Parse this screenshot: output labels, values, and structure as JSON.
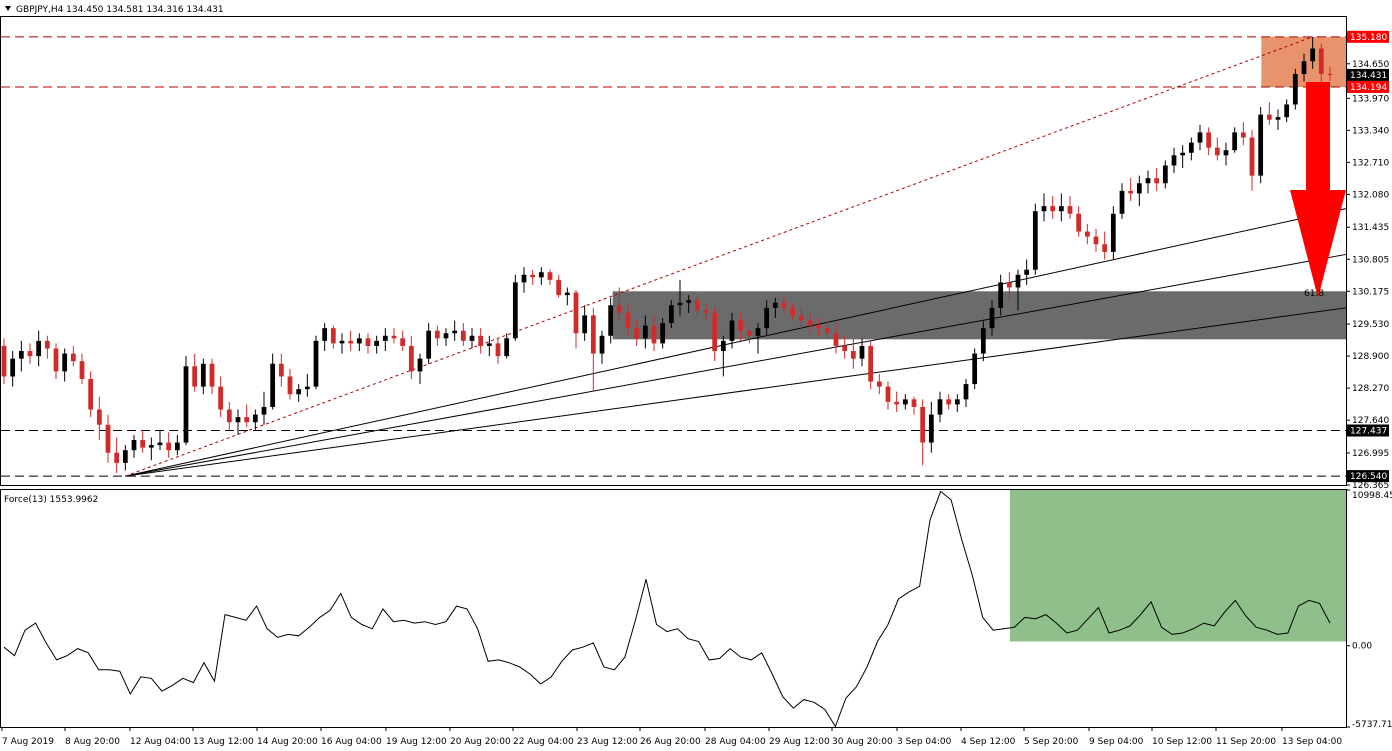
{
  "main_panel": {
    "title": "GBPJPY,H4  134.450 134.581 134.316 134.431",
    "fib_label": "61.8"
  },
  "force_panel": {
    "title": "Force(13) 1553.9962",
    "axis_labels": [
      "10998.450",
      "0.00",
      "-5737.718"
    ]
  },
  "price_axis": {
    "ticks": [
      "134.650",
      "133.970",
      "133.340",
      "132.710",
      "132.080",
      "131.435",
      "130.805",
      "130.175",
      "129.530",
      "128.900",
      "128.270",
      "127.640",
      "126.995",
      "126.365"
    ]
  },
  "price_tags": [
    {
      "label": "135.180",
      "value": 135.18,
      "bg": "#ff0000",
      "fg": "#ffffff"
    },
    {
      "label": "134.431",
      "value": 134.431,
      "bg": "#000000",
      "fg": "#ffffff"
    },
    {
      "label": "134.194",
      "value": 134.194,
      "bg": "#ff0000",
      "fg": "#ffffff"
    },
    {
      "label": "127.437",
      "value": 127.437,
      "bg": "#000000",
      "fg": "#ffffff"
    },
    {
      "label": "126.540",
      "value": 126.54,
      "bg": "#000000",
      "fg": "#ffffff"
    }
  ],
  "colors": {
    "bull": "#000000",
    "bear": "#d02a2a",
    "resistance_zone": "#e8936c",
    "support_zone": "#6b6b6b",
    "force_zone": "#8fbf8b",
    "arrow": "#ff0000",
    "dashed_red": "#b00000"
  },
  "chart_data": [
    {
      "type": "candlestick",
      "symbol": "GBPJPY",
      "timeframe": "H4",
      "ohlc_last": {
        "open": 134.45,
        "high": 134.581,
        "low": 134.316,
        "close": 134.431
      },
      "ylim": [
        126.365,
        135.57
      ],
      "x_tick_labels": [
        "7 Aug 2019",
        "8 Aug 20:00",
        "12 Aug 04:00",
        "13 Aug 12:00",
        "14 Aug 20:00",
        "16 Aug 04:00",
        "19 Aug 12:00",
        "20 Aug 20:00",
        "22 Aug 04:00",
        "23 Aug 12:00",
        "26 Aug 20:00",
        "28 Aug 04:00",
        "29 Aug 12:00",
        "30 Aug 20:00",
        "3 Sep 04:00",
        "4 Sep 12:00",
        "5 Sep 20:00",
        "9 Sep 04:00",
        "10 Sep 12:00",
        "11 Sep 20:00",
        "13 Sep 04:00"
      ],
      "horizontal_levels": [
        135.18,
        134.194,
        127.437,
        126.54
      ],
      "resistance_zone": [
        134.194,
        135.18
      ],
      "support_zone": [
        129.23,
        130.175
      ],
      "candles": [
        [
          129.1,
          129.25,
          128.35,
          128.5
        ],
        [
          128.5,
          129.0,
          128.3,
          128.85
        ],
        [
          128.85,
          129.2,
          128.6,
          129.0
        ],
        [
          129.0,
          129.15,
          128.75,
          128.9
        ],
        [
          128.9,
          129.4,
          128.7,
          129.2
        ],
        [
          129.2,
          129.3,
          128.85,
          129.05
        ],
        [
          129.05,
          129.15,
          128.45,
          128.6
        ],
        [
          128.6,
          129.05,
          128.4,
          128.95
        ],
        [
          128.95,
          129.1,
          128.7,
          128.8
        ],
        [
          128.8,
          128.95,
          128.35,
          128.45
        ],
        [
          128.45,
          128.6,
          127.7,
          127.85
        ],
        [
          127.85,
          128.1,
          127.25,
          127.55
        ],
        [
          127.55,
          127.75,
          126.8,
          127.0
        ],
        [
          127.0,
          127.3,
          126.6,
          126.8
        ],
        [
          126.8,
          127.15,
          126.65,
          127.05
        ],
        [
          127.05,
          127.35,
          126.9,
          127.25
        ],
        [
          127.25,
          127.45,
          127.0,
          127.1
        ],
        [
          127.1,
          127.3,
          126.85,
          127.15
        ],
        [
          127.15,
          127.45,
          127.05,
          127.2
        ],
        [
          127.2,
          127.4,
          126.9,
          127.05
        ],
        [
          127.05,
          127.35,
          126.95,
          127.2
        ],
        [
          127.2,
          128.9,
          127.15,
          128.7
        ],
        [
          128.7,
          128.95,
          128.2,
          128.3
        ],
        [
          128.3,
          128.85,
          128.15,
          128.75
        ],
        [
          128.75,
          128.85,
          128.15,
          128.3
        ],
        [
          128.3,
          128.5,
          127.7,
          127.85
        ],
        [
          127.85,
          128.0,
          127.45,
          127.6
        ],
        [
          127.6,
          127.85,
          127.35,
          127.7
        ],
        [
          127.7,
          127.95,
          127.5,
          127.6
        ],
        [
          127.6,
          127.85,
          127.45,
          127.75
        ],
        [
          127.75,
          128.2,
          127.55,
          127.9
        ],
        [
          127.9,
          128.95,
          127.85,
          128.75
        ],
        [
          128.75,
          128.95,
          128.3,
          128.5
        ],
        [
          128.5,
          128.65,
          128.05,
          128.15
        ],
        [
          128.15,
          128.35,
          128.0,
          128.25
        ],
        [
          128.25,
          128.55,
          128.1,
          128.3
        ],
        [
          128.3,
          129.3,
          128.25,
          129.2
        ],
        [
          129.2,
          129.55,
          129.0,
          129.45
        ],
        [
          129.45,
          129.5,
          129.05,
          129.15
        ],
        [
          129.15,
          129.35,
          128.95,
          129.2
        ],
        [
          129.2,
          129.4,
          129.0,
          129.15
        ],
        [
          129.15,
          129.35,
          129.0,
          129.25
        ],
        [
          129.25,
          129.35,
          128.95,
          129.1
        ],
        [
          129.1,
          129.3,
          128.95,
          129.2
        ],
        [
          129.2,
          129.45,
          129.0,
          129.3
        ],
        [
          129.3,
          129.45,
          129.15,
          129.25
        ],
        [
          129.25,
          129.4,
          129.0,
          129.1
        ],
        [
          129.1,
          129.3,
          128.45,
          128.6
        ],
        [
          128.6,
          128.95,
          128.35,
          128.85
        ],
        [
          128.85,
          129.55,
          128.75,
          129.4
        ],
        [
          129.4,
          129.5,
          129.1,
          129.25
        ],
        [
          129.25,
          129.45,
          129.1,
          129.35
        ],
        [
          129.35,
          129.6,
          129.2,
          129.4
        ],
        [
          129.4,
          129.55,
          129.1,
          129.2
        ],
        [
          129.2,
          129.45,
          129.05,
          129.3
        ],
        [
          129.3,
          129.45,
          128.95,
          129.1
        ],
        [
          129.1,
          129.3,
          128.9,
          129.15
        ],
        [
          129.15,
          129.25,
          128.75,
          128.9
        ],
        [
          128.9,
          129.35,
          128.85,
          129.25
        ],
        [
          129.25,
          130.5,
          129.2,
          130.35
        ],
        [
          130.35,
          130.65,
          130.15,
          130.5
        ],
        [
          130.5,
          130.6,
          130.3,
          130.45
        ],
        [
          130.45,
          130.65,
          130.3,
          130.55
        ],
        [
          130.55,
          130.6,
          130.3,
          130.4
        ],
        [
          130.4,
          130.5,
          130.05,
          130.1
        ],
        [
          130.1,
          130.25,
          129.9,
          130.15
        ],
        [
          130.15,
          130.2,
          129.05,
          129.35
        ],
        [
          129.35,
          129.9,
          129.2,
          129.7
        ],
        [
          129.7,
          129.85,
          128.2,
          128.95
        ],
        [
          128.95,
          129.4,
          128.75,
          129.3
        ],
        [
          129.3,
          130.05,
          129.15,
          129.9
        ],
        [
          129.9,
          130.25,
          129.6,
          129.75
        ],
        [
          129.75,
          129.9,
          129.3,
          129.45
        ],
        [
          129.45,
          129.6,
          129.1,
          129.25
        ],
        [
          129.25,
          129.7,
          129.05,
          129.5
        ],
        [
          129.5,
          129.7,
          129.0,
          129.15
        ],
        [
          129.15,
          129.65,
          129.05,
          129.55
        ],
        [
          129.55,
          130.0,
          129.45,
          129.9
        ],
        [
          129.9,
          130.4,
          129.7,
          129.95
        ],
        [
          129.95,
          130.1,
          129.75,
          130.0
        ],
        [
          130.0,
          130.1,
          129.7,
          129.8
        ],
        [
          129.8,
          129.95,
          129.6,
          129.75
        ],
        [
          129.75,
          129.85,
          128.8,
          129.0
        ],
        [
          129.0,
          129.3,
          128.5,
          129.2
        ],
        [
          129.2,
          129.75,
          129.05,
          129.6
        ],
        [
          129.6,
          129.75,
          129.2,
          129.4
        ],
        [
          129.4,
          129.5,
          129.15,
          129.3
        ],
        [
          129.3,
          129.55,
          128.95,
          129.45
        ],
        [
          129.45,
          130.0,
          129.3,
          129.85
        ],
        [
          129.85,
          130.05,
          129.65,
          129.95
        ],
        [
          129.95,
          130.1,
          129.75,
          129.85
        ],
        [
          129.85,
          129.95,
          129.6,
          129.7
        ],
        [
          129.7,
          129.85,
          129.45,
          129.6
        ],
        [
          129.6,
          129.75,
          129.35,
          129.5
        ],
        [
          129.5,
          129.65,
          129.3,
          129.45
        ],
        [
          129.45,
          129.6,
          129.25,
          129.35
        ],
        [
          129.35,
          129.55,
          128.95,
          129.1
        ],
        [
          129.1,
          129.3,
          128.85,
          129.0
        ],
        [
          129.0,
          129.25,
          128.65,
          128.85
        ],
        [
          128.85,
          129.25,
          128.7,
          129.1
        ],
        [
          129.1,
          129.2,
          128.25,
          128.4
        ],
        [
          128.4,
          128.55,
          128.15,
          128.3
        ],
        [
          128.3,
          128.4,
          127.85,
          128.0
        ],
        [
          128.0,
          128.2,
          127.8,
          127.95
        ],
        [
          127.95,
          128.15,
          127.85,
          128.05
        ],
        [
          128.05,
          128.1,
          127.75,
          127.9
        ],
        [
          127.9,
          128.05,
          126.75,
          127.2
        ],
        [
          127.2,
          128.0,
          127.0,
          127.75
        ],
        [
          127.75,
          128.2,
          127.6,
          128.05
        ],
        [
          128.05,
          128.15,
          127.85,
          127.95
        ],
        [
          127.95,
          128.15,
          127.8,
          128.05
        ],
        [
          128.05,
          128.45,
          127.9,
          128.35
        ],
        [
          128.35,
          129.05,
          128.25,
          128.95
        ],
        [
          128.95,
          129.6,
          128.8,
          129.45
        ],
        [
          129.45,
          130.0,
          129.3,
          129.85
        ],
        [
          129.85,
          130.5,
          129.7,
          130.35
        ],
        [
          130.35,
          130.55,
          130.0,
          130.25
        ],
        [
          130.25,
          130.6,
          129.8,
          130.5
        ],
        [
          130.5,
          130.8,
          130.3,
          130.6
        ],
        [
          130.6,
          131.9,
          130.5,
          131.75
        ],
        [
          131.75,
          132.1,
          131.55,
          131.85
        ],
        [
          131.85,
          132.05,
          131.6,
          131.75
        ],
        [
          131.75,
          132.1,
          131.55,
          131.85
        ],
        [
          131.85,
          132.05,
          131.6,
          131.7
        ],
        [
          131.7,
          131.85,
          131.25,
          131.35
        ],
        [
          131.35,
          131.5,
          131.1,
          131.25
        ],
        [
          131.25,
          131.4,
          130.95,
          131.1
        ],
        [
          131.1,
          131.35,
          130.8,
          130.95
        ],
        [
          130.95,
          131.85,
          130.8,
          131.7
        ],
        [
          131.7,
          132.3,
          131.6,
          132.15
        ],
        [
          132.15,
          132.4,
          131.95,
          132.1
        ],
        [
          132.1,
          132.45,
          131.85,
          132.3
        ],
        [
          132.3,
          132.55,
          132.1,
          132.4
        ],
        [
          132.4,
          132.6,
          132.15,
          132.3
        ],
        [
          132.3,
          132.75,
          132.2,
          132.65
        ],
        [
          132.65,
          133.0,
          132.5,
          132.85
        ],
        [
          132.85,
          133.05,
          132.6,
          132.9
        ],
        [
          132.9,
          133.2,
          132.75,
          133.1
        ],
        [
          133.1,
          133.45,
          132.95,
          133.3
        ],
        [
          133.3,
          133.4,
          132.85,
          133.0
        ],
        [
          133.0,
          133.2,
          132.75,
          132.85
        ],
        [
          132.85,
          133.1,
          132.65,
          132.95
        ],
        [
          132.95,
          133.4,
          132.9,
          133.3
        ],
        [
          133.3,
          133.5,
          133.05,
          133.2
        ],
        [
          133.2,
          133.35,
          132.15,
          132.45
        ],
        [
          132.45,
          133.8,
          132.3,
          133.65
        ],
        [
          133.65,
          133.9,
          133.45,
          133.55
        ],
        [
          133.55,
          133.75,
          133.35,
          133.6
        ],
        [
          133.6,
          133.95,
          133.5,
          133.85
        ],
        [
          133.85,
          134.55,
          133.75,
          134.45
        ],
        [
          134.45,
          134.85,
          134.3,
          134.7
        ],
        [
          134.7,
          135.18,
          134.55,
          134.95
        ],
        [
          134.95,
          135.05,
          134.2,
          134.45
        ],
        [
          134.45,
          134.581,
          134.316,
          134.431
        ]
      ],
      "fan_lines_from": [
        126.54,
        "12 Aug 04:00"
      ]
    },
    {
      "type": "line",
      "name": "Force(13)",
      "last_value": 1553.9962,
      "ylim": [
        -5737.718,
        10998.45
      ],
      "values": [
        -100,
        -700,
        1100,
        1600,
        200,
        -1000,
        -700,
        -200,
        -500,
        -1700,
        -1700,
        -1800,
        -3400,
        -2200,
        -2300,
        -3200,
        -2800,
        -2300,
        -2600,
        -1200,
        -2500,
        2200,
        2000,
        1800,
        2800,
        1200,
        600,
        800,
        700,
        1300,
        2000,
        2500,
        3700,
        2000,
        1500,
        1200,
        2600,
        1700,
        1800,
        1600,
        1700,
        1500,
        1700,
        2800,
        2600,
        1200,
        -1100,
        -1000,
        -1200,
        -1500,
        -2000,
        -2700,
        -2200,
        -1100,
        -300,
        -100,
        200,
        -1500,
        -1700,
        -800,
        1800,
        4700,
        1500,
        1000,
        1200,
        500,
        300,
        -1000,
        -900,
        -200,
        -800,
        -1000,
        -500,
        -2000,
        -3600,
        -4400,
        -3800,
        -4000,
        -4500,
        -5700,
        -3700,
        -2900,
        -1500,
        300,
        1500,
        3300,
        3800,
        4200,
        8900,
        10900,
        10300,
        7500,
        5000,
        2000,
        1100,
        1200,
        1300,
        2000,
        1900,
        2200,
        1600,
        900,
        1100,
        1900,
        2700,
        900,
        1100,
        1400,
        2200,
        3100,
        1300,
        800,
        900,
        1200,
        1600,
        1400,
        2400,
        3200,
        2100,
        1300,
        1100,
        800,
        900,
        2800,
        3200,
        3000,
        1600
      ]
    }
  ]
}
